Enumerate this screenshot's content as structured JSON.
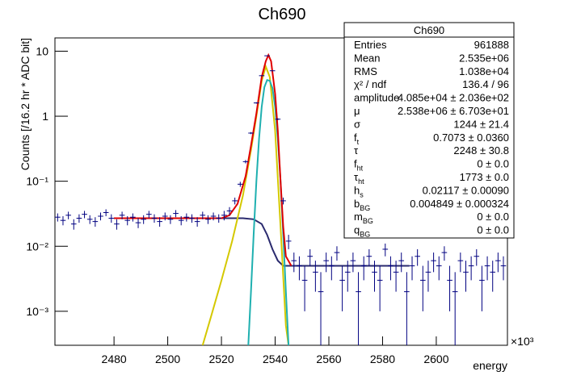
{
  "chart_data": {
    "type": "histogram-fit",
    "title": "Ch690",
    "x_label": "energy",
    "x_multiplier": "×10³",
    "y_label": "Counts [/16.2 hr * ADC bit]",
    "xlim": [
      2458,
      2626.5
    ],
    "xticks": [
      2480,
      2500,
      2520,
      2540,
      2560,
      2580,
      2600
    ],
    "ylim": [
      0.0003,
      16
    ],
    "log_y": true,
    "yticks": [
      {
        "value": 0.001,
        "label": "10⁻³"
      },
      {
        "value": 0.01,
        "label": "10⁻²"
      },
      {
        "value": 0.1,
        "label": "10⁻¹"
      },
      1,
      10
    ],
    "data": {
      "color": "#000080",
      "x": [
        2459,
        2461,
        2463,
        2465,
        2467,
        2469,
        2471,
        2473,
        2475,
        2477,
        2479,
        2481,
        2483,
        2485,
        2487,
        2489,
        2491,
        2493,
        2495,
        2497,
        2499,
        2501,
        2503,
        2505,
        2507,
        2509,
        2511,
        2513,
        2515,
        2517,
        2519,
        2521,
        2523,
        2525,
        2527,
        2529,
        2531,
        2533,
        2535,
        2537,
        2539,
        2541,
        2543,
        2545,
        2547,
        2549,
        2551,
        2553,
        2555,
        2557,
        2559,
        2561,
        2563,
        2565,
        2567,
        2569,
        2571,
        2573,
        2575,
        2577,
        2579,
        2581,
        2583,
        2585,
        2587,
        2589,
        2591,
        2593,
        2595,
        2597,
        2599,
        2601,
        2603,
        2605,
        2607,
        2609,
        2611,
        2613,
        2615,
        2617,
        2619,
        2621,
        2623,
        2625
      ],
      "values": [
        0.028,
        0.025,
        0.03,
        0.022,
        0.027,
        0.031,
        0.026,
        0.024,
        0.029,
        0.033,
        0.027,
        0.022,
        0.03,
        0.025,
        0.028,
        0.023,
        0.026,
        0.031,
        0.027,
        0.024,
        0.029,
        0.026,
        0.032,
        0.025,
        0.028,
        0.027,
        0.024,
        0.03,
        0.026,
        0.029,
        0.027,
        0.03,
        0.035,
        0.05,
        0.09,
        0.2,
        0.55,
        1.6,
        4.2,
        8.5,
        5.0,
        0.9,
        0.05,
        0.012,
        0.006,
        0.005,
        0.003,
        0.007,
        0.004,
        0.002,
        0.006,
        0.005,
        0.008,
        0.003,
        0.004,
        0.006,
        0.002,
        0.005,
        0.007,
        0.004,
        0.003,
        0.009,
        0.005,
        0.004,
        0.006,
        0.002,
        0.005,
        0.007,
        0.003,
        0.004,
        0.006,
        0.005,
        0.008,
        0.003,
        0.002,
        0.006,
        0.004,
        0.005,
        0.007,
        0.003,
        0.005,
        0.004,
        0.006,
        0.005
      ],
      "errors": [
        0.004,
        0.004,
        0.004,
        0.004,
        0.004,
        0.004,
        0.004,
        0.004,
        0.004,
        0.004,
        0.004,
        0.004,
        0.004,
        0.004,
        0.004,
        0.004,
        0.004,
        0.004,
        0.004,
        0.004,
        0.004,
        0.004,
        0.004,
        0.004,
        0.004,
        0.004,
        0.004,
        0.004,
        0.004,
        0.004,
        0.004,
        0.005,
        0.005,
        0.006,
        0.008,
        0.012,
        0.02,
        0.04,
        0.07,
        0.1,
        0.07,
        0.03,
        0.006,
        0.003,
        0.002,
        0.002,
        0.002,
        0.002,
        0.002,
        0.002,
        0.002,
        0.002,
        0.002,
        0.002,
        0.002,
        0.002,
        0.002,
        0.002,
        0.002,
        0.002,
        0.002,
        0.002,
        0.002,
        0.002,
        0.002,
        0.002,
        0.002,
        0.002,
        0.002,
        0.002,
        0.002,
        0.002,
        0.002,
        0.002,
        0.002,
        0.002,
        0.002,
        0.002,
        0.002,
        0.002,
        0.002,
        0.002,
        0.002,
        0.002
      ]
    },
    "fits": [
      {
        "color": "#2a2a6e",
        "x": [
          2480,
          2528,
          2532,
          2535,
          2537,
          2539,
          2541,
          2543,
          2590
        ],
        "values": [
          0.027,
          0.027,
          0.026,
          0.022,
          0.015,
          0.009,
          0.006,
          0.005,
          0.005
        ]
      },
      {
        "color": "#d4c800",
        "x": [
          2513,
          2516,
          2520,
          2524,
          2528,
          2531,
          2533,
          2535,
          2536.5,
          2538,
          2540,
          2542,
          2544,
          2545
        ],
        "values": [
          0.0003,
          0.0008,
          0.003,
          0.012,
          0.06,
          0.3,
          1.0,
          3.5,
          5.8,
          4.0,
          0.6,
          0.02,
          0.0006,
          0.0003
        ]
      },
      {
        "color": "#1fb0b0",
        "x": [
          2530,
          2531,
          2532,
          2533,
          2534,
          2535,
          2536,
          2537,
          2538,
          2539,
          2540,
          2541,
          2542,
          2543,
          2544,
          2545
        ],
        "values": [
          0.0003,
          0.002,
          0.015,
          0.1,
          0.45,
          1.4,
          2.8,
          3.6,
          3.5,
          2.7,
          1.4,
          0.45,
          0.1,
          0.015,
          0.002,
          0.0003
        ]
      },
      {
        "color": "#e00000",
        "x": [
          2480,
          2520,
          2523,
          2526,
          2529,
          2531,
          2533,
          2535,
          2536.5,
          2537.5,
          2538.5,
          2540,
          2541,
          2542,
          2543,
          2544,
          2546
        ],
        "values": [
          0.027,
          0.027,
          0.03,
          0.045,
          0.12,
          0.35,
          1.1,
          4.0,
          7.0,
          8.7,
          7.0,
          2.2,
          0.6,
          0.1,
          0.02,
          0.007,
          0.005
        ]
      }
    ],
    "stats_box": {
      "title": "Ch690",
      "rows": [
        {
          "label": "Entries",
          "value": "961888"
        },
        {
          "label": "Mean",
          "value": "2.535e+06"
        },
        {
          "label": "RMS",
          "value": "1.038e+04"
        },
        {
          "label": "χ² / ndf",
          "value": "136.4 / 96"
        },
        {
          "label": "amplitude",
          "value": "4.085e+04 ± 2.036e+02"
        },
        {
          "label": "μ",
          "value": "2.538e+06 ± 6.703e+01"
        },
        {
          "label": "σ",
          "value": "1244 ± 21.4"
        },
        {
          "label": "f",
          "sub": "t",
          "value": "0.7073 ± 0.0360"
        },
        {
          "label": "τ",
          "value": "2248 ± 30.8"
        },
        {
          "label": "f",
          "sub": "ht",
          "value": "0 ± 0.0"
        },
        {
          "label": "τ",
          "sub": "ht",
          "value": "1773 ± 0.0"
        },
        {
          "label": "h",
          "sub": "s",
          "value": "0.02117 ± 0.00090"
        },
        {
          "label": "b",
          "sub": "BG",
          "value": "0.004849 ± 0.000324"
        },
        {
          "label": "m",
          "sub": "BG",
          "value": "0 ± 0.0"
        },
        {
          "label": "q",
          "sub": "BG",
          "value": "0 ± 0.0"
        }
      ]
    }
  }
}
